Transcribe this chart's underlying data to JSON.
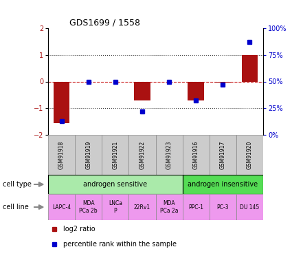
{
  "title": "GDS1699 / 1558",
  "samples": [
    "GSM91918",
    "GSM91919",
    "GSM91921",
    "GSM91922",
    "GSM91923",
    "GSM91916",
    "GSM91917",
    "GSM91920"
  ],
  "log2_ratio": [
    -1.55,
    0.0,
    0.0,
    -0.7,
    0.0,
    -0.7,
    -0.05,
    1.0
  ],
  "percentile_rank": [
    13,
    50,
    50,
    22,
    50,
    32,
    47,
    87
  ],
  "bar_color": "#aa1111",
  "dot_color": "#0000cc",
  "zero_line_color": "#cc2222",
  "dotted_line_color": "#333333",
  "ylim": [
    -2,
    2
  ],
  "y2lim": [
    0,
    100
  ],
  "yticks": [
    -2,
    -1,
    0,
    1,
    2
  ],
  "y2ticks": [
    0,
    25,
    50,
    75,
    100
  ],
  "y2ticklabels": [
    "0",
    "25",
    "50",
    "75",
    "100%"
  ],
  "cell_type_sensitive": "androgen sensitive",
  "cell_type_insensitive": "androgen insensitive",
  "cell_type_sensitive_color": "#aaeaaa",
  "cell_type_insensitive_color": "#55dd55",
  "cell_line_color": "#ee99ee",
  "sample_bg_color": "#cccccc",
  "sensitive_count": 5,
  "insensitive_count": 3,
  "cell_lines": [
    "LAPC-4",
    "MDA\nPCa 2b",
    "LNCa\nP",
    "22Rv1",
    "MDA\nPCa 2a",
    "PPC-1",
    "PC-3",
    "DU 145"
  ],
  "legend_bar_label": "log2 ratio",
  "legend_dot_label": "percentile rank within the sample",
  "bar_width": 0.6
}
